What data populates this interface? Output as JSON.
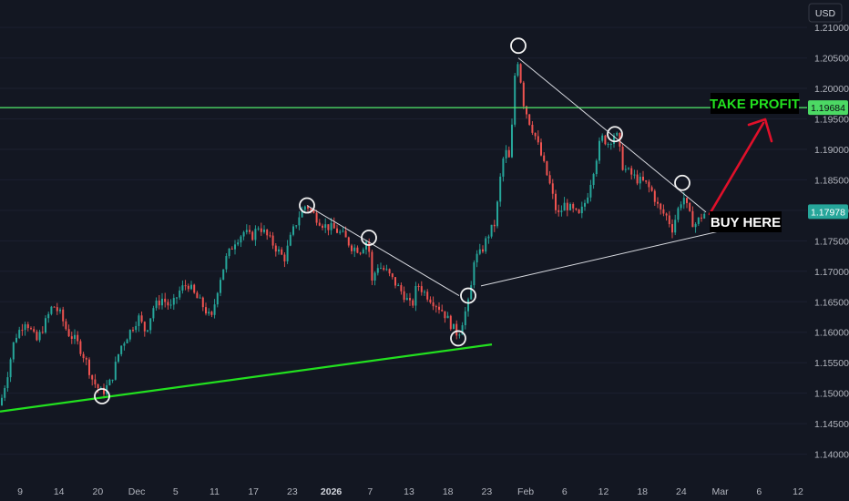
{
  "header": {
    "currency_button": "USD"
  },
  "chart_data": {
    "type": "candlestick",
    "y_axis": {
      "ticks": [
        "1.21000",
        "1.20500",
        "1.20000",
        "1.19500",
        "1.19000",
        "1.18500",
        "1.18000",
        "1.17500",
        "1.17000",
        "1.16500",
        "1.16000",
        "1.15500",
        "1.15000",
        "1.14500",
        "1.14000"
      ],
      "ylim": [
        1.1365,
        1.2145
      ]
    },
    "x_axis": {
      "ticks": [
        {
          "label": "9",
          "bold": false
        },
        {
          "label": "14",
          "bold": false
        },
        {
          "label": "20",
          "bold": false
        },
        {
          "label": "Dec",
          "bold": false
        },
        {
          "label": "5",
          "bold": false
        },
        {
          "label": "11",
          "bold": false
        },
        {
          "label": "17",
          "bold": false
        },
        {
          "label": "23",
          "bold": false
        },
        {
          "label": "2026",
          "bold": true
        },
        {
          "label": "7",
          "bold": false
        },
        {
          "label": "13",
          "bold": false
        },
        {
          "label": "18",
          "bold": false
        },
        {
          "label": "23",
          "bold": false
        },
        {
          "label": "Feb",
          "bold": false
        },
        {
          "label": "6",
          "bold": false
        },
        {
          "label": "12",
          "bold": false
        },
        {
          "label": "18",
          "bold": false
        },
        {
          "label": "24",
          "bold": false
        },
        {
          "label": "Mar",
          "bold": false
        },
        {
          "label": "6",
          "bold": false
        },
        {
          "label": "12",
          "bold": false
        }
      ]
    },
    "price_path": [
      [
        0,
        1.148
      ],
      [
        8,
        1.153
      ],
      [
        16,
        1.159
      ],
      [
        28,
        1.162
      ],
      [
        40,
        1.1585
      ],
      [
        48,
        1.161
      ],
      [
        58,
        1.1645
      ],
      [
        66,
        1.163
      ],
      [
        74,
        1.16
      ],
      [
        84,
        1.1585
      ],
      [
        94,
        1.1555
      ],
      [
        102,
        1.152
      ],
      [
        112,
        1.15
      ],
      [
        122,
        1.152
      ],
      [
        132,
        1.1575
      ],
      [
        142,
        1.16
      ],
      [
        152,
        1.1625
      ],
      [
        160,
        1.16
      ],
      [
        168,
        1.164
      ],
      [
        178,
        1.1655
      ],
      [
        188,
        1.164
      ],
      [
        198,
        1.167
      ],
      [
        206,
        1.168
      ],
      [
        214,
        1.166
      ],
      [
        222,
        1.1645
      ],
      [
        232,
        1.162
      ],
      [
        240,
        1.168
      ],
      [
        248,
        1.172
      ],
      [
        258,
        1.175
      ],
      [
        268,
        1.1765
      ],
      [
        276,
        1.1755
      ],
      [
        284,
        1.1775
      ],
      [
        292,
        1.176
      ],
      [
        302,
        1.174
      ],
      [
        312,
        1.172
      ],
      [
        320,
        1.176
      ],
      [
        328,
        1.179
      ],
      [
        336,
        1.181
      ],
      [
        346,
        1.179
      ],
      [
        356,
        1.1775
      ],
      [
        366,
        1.177
      ],
      [
        376,
        1.176
      ],
      [
        386,
        1.174
      ],
      [
        396,
        1.1735
      ],
      [
        404,
        1.1755
      ],
      [
        408,
        1.168
      ],
      [
        414,
        1.171
      ],
      [
        424,
        1.17
      ],
      [
        434,
        1.168
      ],
      [
        444,
        1.166
      ],
      [
        452,
        1.164
      ],
      [
        458,
        1.168
      ],
      [
        466,
        1.1665
      ],
      [
        476,
        1.165
      ],
      [
        486,
        1.1635
      ],
      [
        496,
        1.161
      ],
      [
        503,
        1.1595
      ],
      [
        510,
        1.163
      ],
      [
        516,
        1.1655
      ],
      [
        520,
        1.172
      ],
      [
        528,
        1.173
      ],
      [
        536,
        1.176
      ],
      [
        544,
        1.178
      ],
      [
        548,
        1.184
      ],
      [
        554,
        1.19
      ],
      [
        560,
        1.188
      ],
      [
        565,
        1.202
      ],
      [
        569,
        1.205
      ],
      [
        574,
        1.198
      ],
      [
        580,
        1.195
      ],
      [
        588,
        1.192
      ],
      [
        596,
        1.188
      ],
      [
        604,
        1.184
      ],
      [
        612,
        1.179
      ],
      [
        620,
        1.181
      ],
      [
        628,
        1.18
      ],
      [
        636,
        1.179
      ],
      [
        644,
        1.182
      ],
      [
        652,
        1.187
      ],
      [
        660,
        1.192
      ],
      [
        668,
        1.191
      ],
      [
        676,
        1.193
      ],
      [
        684,
        1.187
      ],
      [
        692,
        1.186
      ],
      [
        700,
        1.185
      ],
      [
        708,
        1.1845
      ],
      [
        716,
        1.183
      ],
      [
        724,
        1.18
      ],
      [
        732,
        1.179
      ],
      [
        738,
        1.177
      ],
      [
        744,
        1.18
      ],
      [
        750,
        1.1825
      ],
      [
        756,
        1.1795
      ],
      [
        762,
        1.1775
      ],
      [
        770,
        1.179
      ],
      [
        776,
        1.1798
      ]
    ],
    "horizontal_line": {
      "price": 1.19684,
      "label": "1.19684",
      "color": "#4cd964"
    },
    "last_price": {
      "price": 1.17978,
      "label": "1.17978",
      "color": "#26a69a"
    },
    "support_trendline": {
      "from": [
        0,
        1.147
      ],
      "to": [
        540,
        1.158
      ],
      "color": "#22e01f"
    },
    "channel_lines": [
      {
        "from": [
          337,
          1.1808
        ],
        "to": [
          504,
          1.166
        ]
      },
      {
        "from": [
          528,
          1.1676
        ],
        "to": [
          788,
          1.1765
        ]
      },
      {
        "from": [
          569,
          1.205
        ],
        "to": [
          775,
          1.1797
        ]
      }
    ],
    "swing_points": [
      [
        112,
        1.1495
      ],
      [
        337,
        1.1808
      ],
      [
        405,
        1.1755
      ],
      [
        503,
        1.159
      ],
      [
        514,
        1.166
      ],
      [
        569,
        1.207
      ],
      [
        675,
        1.1925
      ],
      [
        749,
        1.1845
      ]
    ],
    "annotations": {
      "take_profit": "TAKE PROFIT",
      "buy_here": "BUY HERE",
      "take_profit_color": "#22e01f",
      "arrow_color": "#e0102a"
    },
    "colors": {
      "up": "#26a69a",
      "down": "#ef5350",
      "background": "#131722",
      "axis_text": "#b2b5be"
    }
  }
}
